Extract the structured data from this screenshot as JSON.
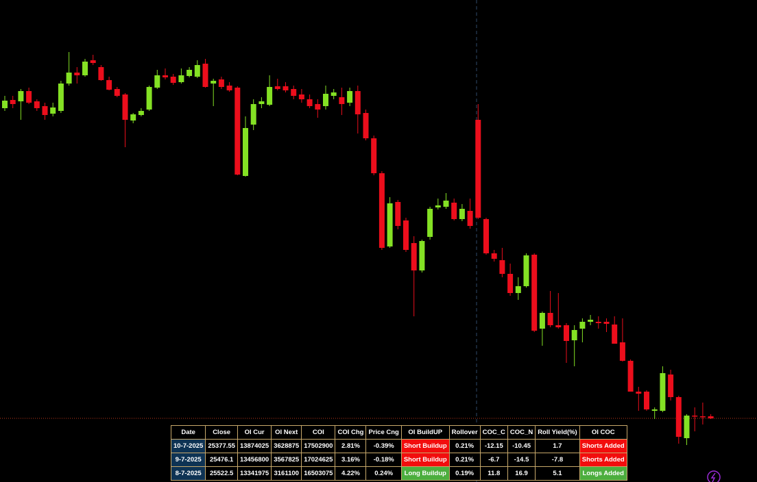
{
  "chart_data": {
    "type": "candlestick",
    "open": [
      25490.5,
      25493.5,
      25493,
      25496.75,
      25493,
      25491.25,
      25488.5,
      25489.5,
      25499.5,
      25503.5,
      25502.5,
      25508,
      25505.5,
      25500.75,
      25497.5,
      25495.5,
      25486,
      25488,
      25490,
      25498,
      25502.5,
      25502,
      25500,
      25502.25,
      25502,
      25506.75,
      25499.5,
      25501,
      25498.75,
      25498,
      25465.75,
      25484.5,
      25492,
      25491.75,
      25498.5,
      25498.5,
      25497.5,
      25495.5,
      25493.75,
      25492,
      25491.25,
      25495,
      25494.5,
      25492.5,
      25496.75,
      25488.75,
      25479.5,
      25466.75,
      25440,
      25456.25,
      25449.5,
      25441.25,
      25431.25,
      25443.5,
      25454.25,
      25454.5,
      25456,
      25450,
      25453,
      25486.25,
      25450,
      25437.5,
      25435,
      25430,
      25423,
      25425.5,
      25437,
      25410,
      25415.75,
      25411.25,
      25411.25,
      25405.75,
      25410,
      25412.5,
      25412.5,
      25412.5,
      25411.5,
      25405,
      25398.25,
      25387,
      25387,
      25380,
      25380,
      25393.25,
      25385,
      25370,
      25378.25,
      25378,
      25378
    ],
    "high": [
      25495,
      25495,
      25497.5,
      25498,
      25493.75,
      25492.5,
      25492.5,
      25500.5,
      25511,
      25505.5,
      25508.5,
      25510,
      25506.25,
      25502,
      25498.25,
      25496,
      25488.75,
      25490.5,
      25498.75,
      25504.5,
      25505,
      25503,
      25505,
      25505.5,
      25508,
      25508.5,
      25501.25,
      25502,
      25500,
      25498.5,
      25487.5,
      25493.75,
      25494.5,
      25502.5,
      25501.25,
      25500,
      25498.75,
      25497.5,
      25495.5,
      25493.75,
      25498.75,
      25497.5,
      25498,
      25498,
      25498.75,
      25490,
      25480.5,
      25467.5,
      25458,
      25457,
      25450.5,
      25443.75,
      25442.5,
      25454.5,
      25457.5,
      25459.5,
      25457.5,
      25455.5,
      25457.5,
      25492,
      25450.5,
      25438.75,
      25439.5,
      25433.75,
      25428.75,
      25437.5,
      25437.5,
      25416.25,
      25423.75,
      25423,
      25412,
      25411.25,
      25413.75,
      25415,
      25414.5,
      25413.75,
      25414.5,
      25413.75,
      25398.75,
      25388.75,
      25387.5,
      25381.25,
      25396.25,
      25395,
      25385.5,
      25378.75,
      25381.25,
      25383,
      25378.75
    ],
    "low": [
      25489.5,
      25490.5,
      25486.25,
      25492,
      25489.5,
      25486.25,
      25487.5,
      25488.75,
      25498.75,
      25499.5,
      25502,
      25506.25,
      25500.5,
      25497,
      25494.5,
      25476.25,
      25485,
      25487.5,
      25489.5,
      25497.5,
      25501,
      25499,
      25499.5,
      25501.75,
      25501.5,
      25498,
      25491.25,
      25497.5,
      25496.5,
      25466,
      25465.5,
      25482.5,
      25490.5,
      25491.25,
      25497,
      25496.25,
      25493.75,
      25492.5,
      25490.5,
      25487,
      25490,
      25493.75,
      25488,
      25491.25,
      25481.25,
      25478.75,
      25466,
      25438.75,
      25439.5,
      25446.25,
      25438,
      25414.5,
      25430.5,
      25442.5,
      25453.5,
      25453.75,
      25449.5,
      25449.25,
      25446.5,
      25450,
      25437,
      25434.5,
      25428.75,
      25422,
      25420.5,
      25425,
      25408.75,
      25403.75,
      25410.5,
      25410,
      25397.5,
      25396.25,
      25405,
      25411.25,
      25410,
      25408.75,
      25404.5,
      25398,
      25387,
      25380,
      25380,
      25377,
      25379.5,
      25383.75,
      25368,
      25367.5,
      25372.5,
      25375,
      25377
    ],
    "close": [
      25493.25,
      25492,
      25496.75,
      25492.5,
      25490.5,
      25488,
      25490.75,
      25499.5,
      25503.5,
      25502.5,
      25507.5,
      25507,
      25500.75,
      25497.25,
      25495,
      25486.25,
      25488.25,
      25489.5,
      25498.25,
      25502.5,
      25501.75,
      25499.75,
      25502.5,
      25504.5,
      25506.25,
      25498.25,
      25500.5,
      25498.25,
      25497,
      25466.25,
      25483.25,
      25492,
      25493,
      25498.25,
      25497.5,
      25497,
      25495,
      25493.75,
      25491.25,
      25490,
      25495.75,
      25496.25,
      25492,
      25496.75,
      25488.25,
      25479.5,
      25466.75,
      25439.5,
      25455.75,
      25447.5,
      25438.75,
      25431.25,
      25442,
      25453.75,
      25455,
      25456.75,
      25450,
      25453.75,
      25447.5,
      25450.5,
      25437.5,
      25435.5,
      25430,
      25423,
      25425.5,
      25436.75,
      25409.25,
      25415.75,
      25411.25,
      25410.5,
      25405.5,
      25409.5,
      25412.5,
      25413.25,
      25412,
      25411.75,
      25404.5,
      25398.25,
      25387,
      25386.25,
      25380.5,
      25380.5,
      25393.75,
      25385,
      25370.5,
      25378.25,
      25378,
      25377.75,
      25377.25
    ],
    "ylim": [
      25354,
      25530
    ],
    "up_color": "#84e124",
    "down_color": "#ec0e1c"
  },
  "table": {
    "header": [
      "Date",
      "Close",
      "OI Cur",
      "OI Next",
      "COI",
      "COI Chg",
      "Price Cng",
      "OI BuildUP",
      "Rollover",
      "COC_C",
      "COC_N",
      "Roll Yield(%)",
      "OI COC"
    ],
    "rows": [
      [
        "10-7-2025",
        "25377.55",
        "13874025",
        "3628875",
        "17502900",
        "2.81%",
        "-0.39%",
        "Short Buildup",
        "0.21%",
        "-12.15",
        "-10.45",
        "1.7",
        "Shorts Added"
      ],
      [
        "9-7-2025",
        "25476.1",
        "13456800",
        "3567825",
        "17024625",
        "3.16%",
        "-0.18%",
        "Short Buildup",
        "0.21%",
        "-6.7",
        "-14.5",
        "-7.8",
        "Shorts Added"
      ],
      [
        "8-7-2025",
        "25522.5",
        "13341975",
        "3161100",
        "16503075",
        "4.22%",
        "0.24%",
        "Long Buildup",
        "0.19%",
        "11.8",
        "16.9",
        "5.1",
        "Longs Added"
      ]
    ],
    "status_colors": [
      "#f20d0d",
      "#f20d0d",
      "#4cae3e"
    ]
  }
}
